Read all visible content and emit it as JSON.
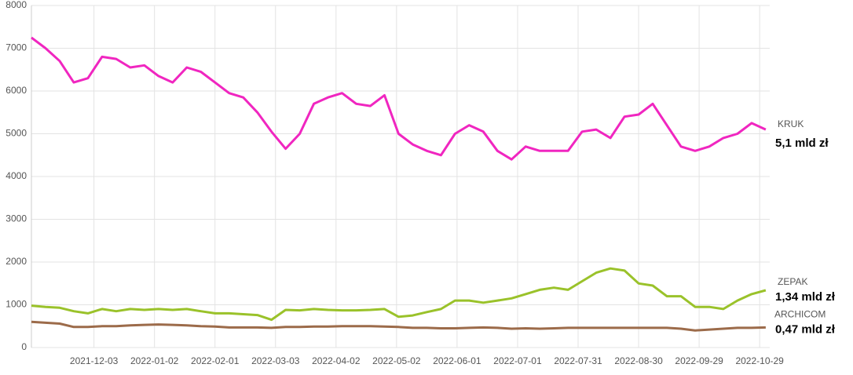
{
  "chart_data": {
    "type": "line",
    "x": [
      "2021-11-02",
      "2021-11-09",
      "2021-11-16",
      "2021-11-23",
      "2021-11-30",
      "2021-12-07",
      "2021-12-14",
      "2021-12-21",
      "2021-12-28",
      "2022-01-04",
      "2022-01-11",
      "2022-01-18",
      "2022-01-25",
      "2022-02-01",
      "2022-02-08",
      "2022-02-15",
      "2022-02-22",
      "2022-03-01",
      "2022-03-08",
      "2022-03-15",
      "2022-03-22",
      "2022-03-29",
      "2022-04-05",
      "2022-04-12",
      "2022-04-19",
      "2022-04-26",
      "2022-05-03",
      "2022-05-10",
      "2022-05-17",
      "2022-05-24",
      "2022-05-31",
      "2022-06-07",
      "2022-06-14",
      "2022-06-21",
      "2022-06-28",
      "2022-07-05",
      "2022-07-12",
      "2022-07-19",
      "2022-07-26",
      "2022-08-02",
      "2022-08-09",
      "2022-08-16",
      "2022-08-23",
      "2022-08-30",
      "2022-09-06",
      "2022-09-13",
      "2022-09-20",
      "2022-09-27",
      "2022-10-04",
      "2022-10-11",
      "2022-10-18",
      "2022-10-25",
      "2022-11-01"
    ],
    "series": [
      {
        "name": "KRUK",
        "color": "#f026c0",
        "values": [
          7250,
          7000,
          6700,
          6200,
          6300,
          6800,
          6750,
          6550,
          6600,
          6350,
          6200,
          6550,
          6450,
          6200,
          5950,
          5850,
          5500,
          5050,
          4650,
          5000,
          5700,
          5850,
          5950,
          5700,
          5650,
          5900,
          5000,
          4750,
          4600,
          4500,
          5000,
          5200,
          5050,
          4600,
          4400,
          4700,
          4600,
          4600,
          4600,
          5050,
          5100,
          4900,
          5400,
          5450,
          5700,
          5200,
          4700,
          4600,
          4700,
          4900,
          5000,
          5250,
          5100
        ]
      },
      {
        "name": "ZEPAK",
        "color": "#9ac22a",
        "values": [
          980,
          950,
          930,
          850,
          800,
          900,
          850,
          900,
          880,
          900,
          880,
          900,
          850,
          800,
          800,
          780,
          760,
          650,
          880,
          870,
          900,
          880,
          870,
          870,
          880,
          900,
          720,
          750,
          830,
          900,
          1100,
          1100,
          1050,
          1100,
          1150,
          1250,
          1350,
          1400,
          1350,
          1550,
          1750,
          1850,
          1800,
          1500,
          1450,
          1200,
          1200,
          950,
          950,
          900,
          1100,
          1250,
          1340
        ]
      },
      {
        "name": "ARCHICOM",
        "color": "#9c6b4a",
        "values": [
          600,
          580,
          560,
          480,
          480,
          500,
          500,
          520,
          530,
          540,
          530,
          520,
          500,
          490,
          470,
          470,
          470,
          460,
          480,
          480,
          490,
          490,
          500,
          500,
          500,
          490,
          480,
          460,
          460,
          450,
          450,
          460,
          470,
          460,
          440,
          450,
          440,
          450,
          460,
          460,
          460,
          460,
          460,
          460,
          460,
          460,
          440,
          400,
          420,
          440,
          460,
          460,
          470
        ]
      }
    ],
    "annotations": [
      {
        "text": "5,1 mld zł",
        "series": 0
      },
      {
        "text": "1,34 mld zł",
        "series": 1
      },
      {
        "text": "0,47 mld zł",
        "series": 2
      }
    ],
    "xlim": [
      "2021-11-02",
      "2022-11-03"
    ],
    "xticks": [
      "2021-12-03",
      "2022-01-02",
      "2022-02-01",
      "2022-03-03",
      "2022-04-02",
      "2022-05-02",
      "2022-06-01",
      "2022-07-01",
      "2022-07-31",
      "2022-08-30",
      "2022-09-29",
      "2022-10-29"
    ],
    "ylim": [
      0,
      8000
    ],
    "yticks": [
      0,
      1000,
      2000,
      3000,
      4000,
      5000,
      6000,
      7000,
      8000
    ],
    "grid": true
  }
}
